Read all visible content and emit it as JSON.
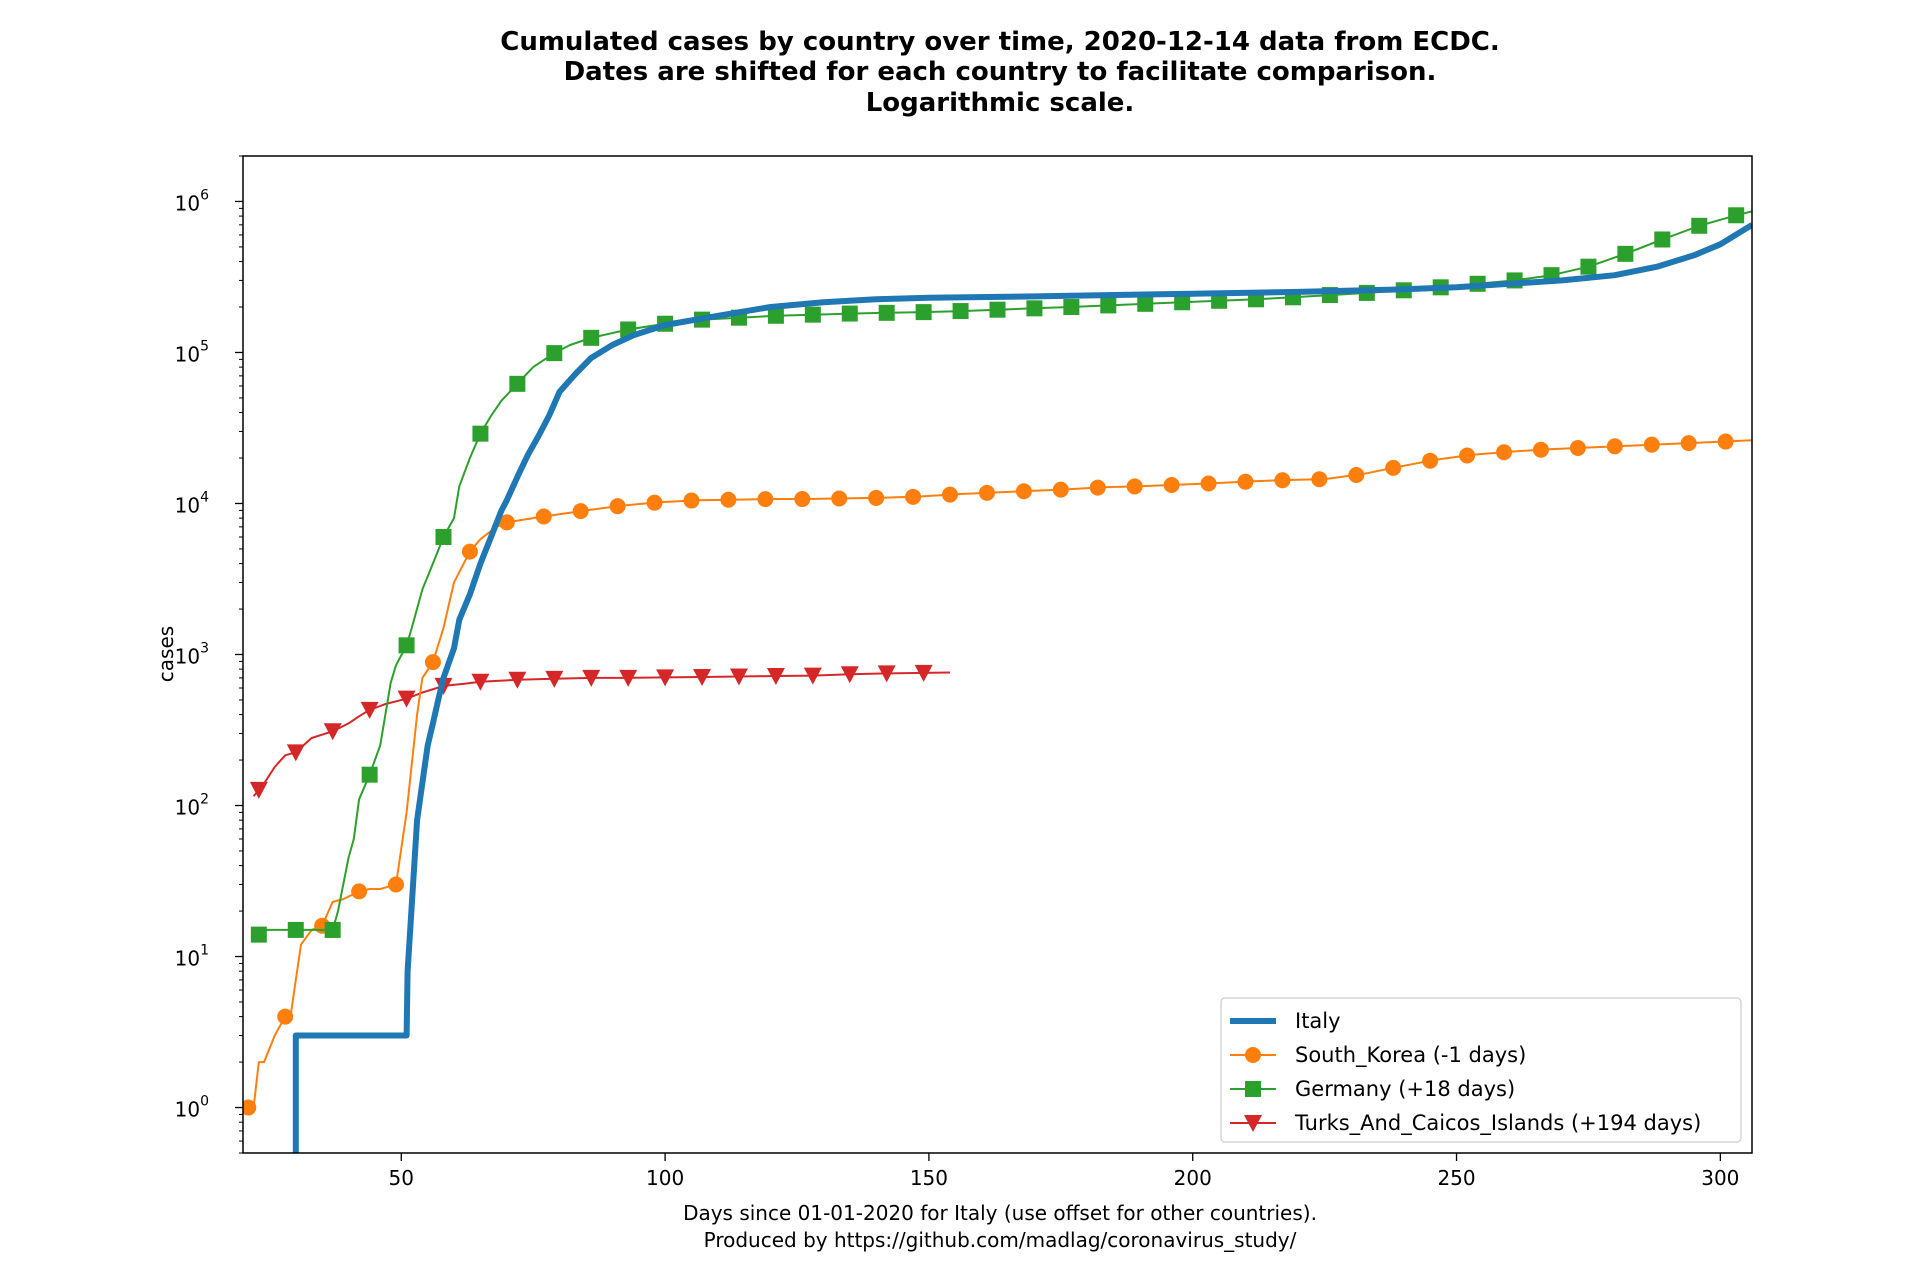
{
  "chart_data": {
    "type": "line",
    "title": [
      "Cumulated cases by country over time, 2020-12-14 data from ECDC.",
      "Dates are shifted for each country to facilitate comparison.",
      "Logarithmic scale."
    ],
    "xlabel": [
      "Days since 01-01-2020 for Italy (use offset for other countries).",
      "Produced by https://github.com/madlag/coronavirus_study/"
    ],
    "ylabel": "cases",
    "x_scale": "linear",
    "y_scale": "log",
    "xlim": [
      20,
      306
    ],
    "ylim": [
      0.5,
      2000000
    ],
    "x_ticks": [
      50,
      100,
      150,
      200,
      250,
      300
    ],
    "y_ticks": [
      {
        "value": 1,
        "base": "10",
        "exp": "0"
      },
      {
        "value": 10,
        "base": "10",
        "exp": "1"
      },
      {
        "value": 100,
        "base": "10",
        "exp": "2"
      },
      {
        "value": 1000,
        "base": "10",
        "exp": "3"
      },
      {
        "value": 10000,
        "base": "10",
        "exp": "4"
      },
      {
        "value": 100000,
        "base": "10",
        "exp": "5"
      },
      {
        "value": 1000000,
        "base": "10",
        "exp": "6"
      }
    ],
    "grid": false,
    "legend_position": "lower-right",
    "series": [
      {
        "name": "Italy",
        "color": "#1f77b4",
        "marker": "none",
        "line_width": "thick",
        "points": [
          [
            30,
            0.3
          ],
          [
            30,
            3
          ],
          [
            51,
            3
          ],
          [
            51.2,
            8
          ],
          [
            53,
            80
          ],
          [
            55,
            250
          ],
          [
            56,
            350
          ],
          [
            57,
            500
          ],
          [
            58,
            700
          ],
          [
            60,
            1100
          ],
          [
            61,
            1700
          ],
          [
            63,
            2500
          ],
          [
            65,
            4000
          ],
          [
            67,
            6000
          ],
          [
            69,
            9000
          ],
          [
            70,
            10500
          ],
          [
            72,
            15000
          ],
          [
            74,
            21000
          ],
          [
            76,
            28000
          ],
          [
            78,
            38000
          ],
          [
            80,
            55000
          ],
          [
            83,
            72000
          ],
          [
            86,
            92000
          ],
          [
            90,
            112000
          ],
          [
            94,
            130000
          ],
          [
            100,
            152000
          ],
          [
            110,
            175000
          ],
          [
            120,
            200000
          ],
          [
            130,
            215000
          ],
          [
            140,
            225000
          ],
          [
            150,
            230000
          ],
          [
            170,
            235000
          ],
          [
            200,
            245000
          ],
          [
            220,
            252000
          ],
          [
            240,
            262000
          ],
          [
            250,
            270000
          ],
          [
            260,
            285000
          ],
          [
            270,
            300000
          ],
          [
            280,
            325000
          ],
          [
            288,
            370000
          ],
          [
            295,
            440000
          ],
          [
            300,
            520000
          ],
          [
            306,
            700000
          ]
        ]
      },
      {
        "name": "South_Korea (-1 days)",
        "color": "#ff7f0e",
        "marker": "circle",
        "points": [
          [
            21,
            1
          ],
          [
            22,
            1
          ],
          [
            23,
            2
          ],
          [
            24,
            2
          ],
          [
            26,
            3
          ],
          [
            28,
            4
          ],
          [
            29,
            4
          ],
          [
            30,
            7
          ],
          [
            31,
            12
          ],
          [
            33,
            15
          ],
          [
            35,
            16
          ],
          [
            37,
            23
          ],
          [
            39,
            24
          ],
          [
            42,
            27
          ],
          [
            44,
            28
          ],
          [
            46,
            28
          ],
          [
            49,
            30
          ],
          [
            51,
            90
          ],
          [
            53,
            400
          ],
          [
            54,
            700
          ],
          [
            56,
            890
          ],
          [
            58,
            1500
          ],
          [
            60,
            3000
          ],
          [
            63,
            4800
          ],
          [
            65,
            5800
          ],
          [
            68,
            7000
          ],
          [
            70,
            7500
          ],
          [
            72,
            7700
          ],
          [
            75,
            8000
          ],
          [
            78,
            8300
          ],
          [
            85,
            9000
          ],
          [
            92,
            9700
          ],
          [
            99,
            10200
          ],
          [
            106,
            10500
          ],
          [
            113,
            10600
          ],
          [
            120,
            10700
          ],
          [
            127,
            10700
          ],
          [
            134,
            10800
          ],
          [
            141,
            10900
          ],
          [
            148,
            11100
          ],
          [
            155,
            11500
          ],
          [
            162,
            11800
          ],
          [
            169,
            12100
          ],
          [
            176,
            12400
          ],
          [
            183,
            12800
          ],
          [
            190,
            13000
          ],
          [
            197,
            13300
          ],
          [
            204,
            13600
          ],
          [
            211,
            14000
          ],
          [
            218,
            14300
          ],
          [
            225,
            14500
          ],
          [
            232,
            15600
          ],
          [
            239,
            17500
          ],
          [
            246,
            19500
          ],
          [
            253,
            21000
          ],
          [
            260,
            22000
          ],
          [
            267,
            22800
          ],
          [
            274,
            23400
          ],
          [
            281,
            24000
          ],
          [
            288,
            24600
          ],
          [
            295,
            25200
          ],
          [
            302,
            25800
          ],
          [
            306,
            26200
          ]
        ]
      },
      {
        "name": "Germany (+18 days)",
        "color": "#2ca02c",
        "marker": "square",
        "points": [
          [
            22,
            13
          ],
          [
            24,
            15
          ],
          [
            30,
            15
          ],
          [
            34,
            15
          ],
          [
            37,
            15
          ],
          [
            38,
            20
          ],
          [
            40,
            45
          ],
          [
            41,
            60
          ],
          [
            42,
            110
          ],
          [
            44,
            160
          ],
          [
            46,
            250
          ],
          [
            48,
            650
          ],
          [
            49,
            850
          ],
          [
            51,
            1150
          ],
          [
            52,
            1500
          ],
          [
            54,
            2700
          ],
          [
            56,
            4000
          ],
          [
            58,
            6000
          ],
          [
            60,
            8000
          ],
          [
            61,
            13000
          ],
          [
            63,
            20000
          ],
          [
            65,
            29000
          ],
          [
            67,
            38000
          ],
          [
            69,
            48000
          ],
          [
            72,
            62000
          ],
          [
            75,
            80000
          ],
          [
            79,
            99000
          ],
          [
            82,
            112000
          ],
          [
            86,
            125000
          ],
          [
            93,
            142000
          ],
          [
            100,
            155000
          ],
          [
            107,
            165000
          ],
          [
            114,
            170000
          ],
          [
            121,
            175000
          ],
          [
            128,
            178000
          ],
          [
            135,
            181000
          ],
          [
            142,
            183000
          ],
          [
            149,
            185000
          ],
          [
            156,
            188000
          ],
          [
            163,
            192000
          ],
          [
            170,
            196000
          ],
          [
            177,
            200000
          ],
          [
            184,
            205000
          ],
          [
            191,
            210000
          ],
          [
            198,
            215000
          ],
          [
            205,
            220000
          ],
          [
            212,
            225000
          ],
          [
            219,
            232000
          ],
          [
            226,
            240000
          ],
          [
            233,
            248000
          ],
          [
            240,
            258000
          ],
          [
            247,
            270000
          ],
          [
            254,
            285000
          ],
          [
            261,
            300000
          ],
          [
            268,
            325000
          ],
          [
            275,
            370000
          ],
          [
            282,
            450000
          ],
          [
            289,
            560000
          ],
          [
            296,
            690000
          ],
          [
            303,
            810000
          ],
          [
            306,
            860000
          ]
        ]
      },
      {
        "name": "Turks_And_Caicos_Islands (+194 days)",
        "color": "#d62728",
        "marker": "triangle-down",
        "points": [
          [
            22,
            115
          ],
          [
            24,
            140
          ],
          [
            26,
            180
          ],
          [
            28,
            215
          ],
          [
            30,
            225
          ],
          [
            33,
            280
          ],
          [
            37,
            310
          ],
          [
            40,
            350
          ],
          [
            42,
            390
          ],
          [
            44,
            430
          ],
          [
            47,
            470
          ],
          [
            51,
            510
          ],
          [
            54,
            560
          ],
          [
            58,
            620
          ],
          [
            62,
            640
          ],
          [
            65,
            660
          ],
          [
            72,
            680
          ],
          [
            79,
            690
          ],
          [
            86,
            700
          ],
          [
            93,
            700
          ],
          [
            100,
            705
          ],
          [
            107,
            710
          ],
          [
            114,
            715
          ],
          [
            121,
            720
          ],
          [
            128,
            725
          ],
          [
            135,
            740
          ],
          [
            142,
            750
          ],
          [
            149,
            755
          ],
          [
            154,
            760
          ]
        ]
      }
    ]
  }
}
